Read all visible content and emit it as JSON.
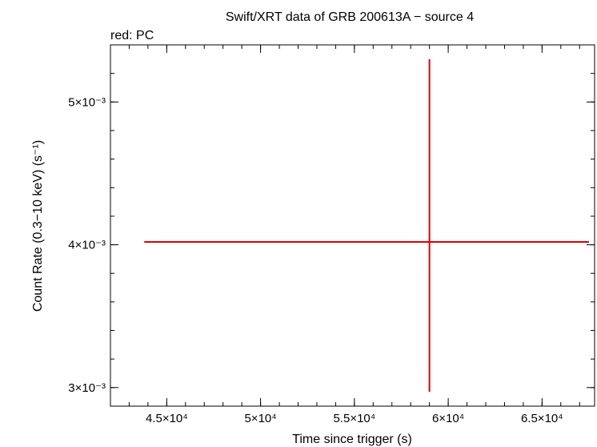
{
  "chart_data": {
    "type": "scatter",
    "title": "Swift/XRT data of GRB 200613A − source 4",
    "subtitle": "red: PC",
    "xlabel": "Time since trigger (s)",
    "ylabel": "Count Rate (0.3−10 keV) (s⁻¹)",
    "xlim": [
      42000,
      67800
    ],
    "ylim": [
      0.00287,
      0.0054
    ],
    "x_ticks": [
      {
        "value": 45000,
        "label": "4.5×10⁴"
      },
      {
        "value": 50000,
        "label": "5×10⁴"
      },
      {
        "value": 55000,
        "label": "5.5×10⁴"
      },
      {
        "value": 60000,
        "label": "6×10⁴"
      },
      {
        "value": 65000,
        "label": "6.5×10⁴"
      }
    ],
    "x_minor_step": 1000,
    "y_ticks": [
      {
        "value": 0.003,
        "label": "3×10⁻³"
      },
      {
        "value": 0.004,
        "label": "4×10⁻³"
      },
      {
        "value": 0.005,
        "label": "5×10⁻³"
      }
    ],
    "y_minor_step": 0.0002,
    "series": [
      {
        "name": "PC",
        "color": "#e00000",
        "points": [
          {
            "x": 59000,
            "xerr_low": 15200,
            "xerr_high": 8500,
            "y": 0.00402,
            "yerr_low": 0.00105,
            "yerr_high": 0.00128
          }
        ]
      }
    ]
  }
}
